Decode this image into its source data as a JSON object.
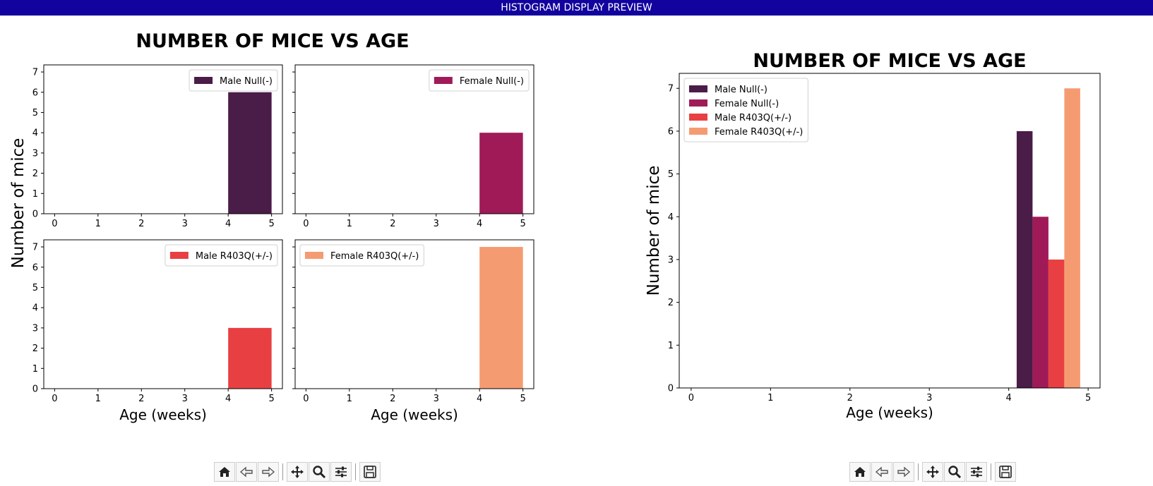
{
  "window": {
    "title": "HISTOGRAM DISPLAY PREVIEW"
  },
  "colors": {
    "male_null": "#4a1c48",
    "female_null": "#a01a58",
    "male_r403q": "#e84042",
    "female_r403q": "#f59b72"
  },
  "toolbar": {
    "buttons": [
      {
        "name": "home-icon"
      },
      {
        "name": "back-icon"
      },
      {
        "name": "forward-icon"
      },
      {
        "name": "pan-icon"
      },
      {
        "name": "zoom-icon"
      },
      {
        "name": "configure-icon"
      },
      {
        "name": "save-icon"
      }
    ]
  },
  "chart_data": [
    {
      "type": "bar",
      "title": "NUMBER OF MICE VS AGE",
      "ylabel": "Number of mice",
      "xlabel": "Age (weeks)",
      "subplots": [
        {
          "legend": "Male Null(-)",
          "color": "#4a1c48",
          "bins": [
            {
              "x0": 4,
              "x1": 5,
              "value": 6
            }
          ],
          "xlim": [
            -0.25,
            5.25
          ],
          "ylim": [
            0,
            7.35
          ],
          "xticks": [
            "0",
            "1",
            "2",
            "3",
            "4",
            "5"
          ],
          "yticks": [
            "0",
            "1",
            "2",
            "3",
            "4",
            "5",
            "6",
            "7"
          ],
          "legend_loc": "upper right",
          "show_yticklabels": true,
          "show_xlabel": false
        },
        {
          "legend": "Female Null(-)",
          "color": "#a01a58",
          "bins": [
            {
              "x0": 4,
              "x1": 5,
              "value": 4
            }
          ],
          "xlim": [
            -0.25,
            5.25
          ],
          "ylim": [
            0,
            7.35
          ],
          "xticks": [
            "0",
            "1",
            "2",
            "3",
            "4",
            "5"
          ],
          "yticks": [
            "0",
            "1",
            "2",
            "3",
            "4",
            "5",
            "6",
            "7"
          ],
          "legend_loc": "upper right",
          "show_yticklabels": false,
          "show_xlabel": false
        },
        {
          "legend": "Male R403Q(+/-)",
          "color": "#e84042",
          "bins": [
            {
              "x0": 4,
              "x1": 5,
              "value": 3
            }
          ],
          "xlim": [
            -0.25,
            5.25
          ],
          "ylim": [
            0,
            7.35
          ],
          "xticks": [
            "0",
            "1",
            "2",
            "3",
            "4",
            "5"
          ],
          "yticks": [
            "0",
            "1",
            "2",
            "3",
            "4",
            "5",
            "6",
            "7"
          ],
          "legend_loc": "upper right",
          "show_yticklabels": true,
          "show_xlabel": true
        },
        {
          "legend": "Female R403Q(+/-)",
          "color": "#f59b72",
          "bins": [
            {
              "x0": 4,
              "x1": 5,
              "value": 7
            }
          ],
          "xlim": [
            -0.25,
            5.25
          ],
          "ylim": [
            0,
            7.35
          ],
          "xticks": [
            "0",
            "1",
            "2",
            "3",
            "4",
            "5"
          ],
          "yticks": [
            "0",
            "1",
            "2",
            "3",
            "4",
            "5",
            "6",
            "7"
          ],
          "legend_loc": "upper left",
          "show_yticklabels": false,
          "show_xlabel": true
        }
      ]
    },
    {
      "type": "bar",
      "title": "NUMBER OF MICE VS AGE",
      "ylabel": "Number of mice",
      "xlabel": "Age (weeks)",
      "xlim": [
        -0.15,
        5.15
      ],
      "ylim": [
        0,
        7.35
      ],
      "xticks": [
        "0",
        "1",
        "2",
        "3",
        "4",
        "5"
      ],
      "yticks": [
        "0",
        "1",
        "2",
        "3",
        "4",
        "5",
        "6",
        "7"
      ],
      "legend_loc": "upper left",
      "series": [
        {
          "name": "Male Null(-)",
          "color": "#4a1c48",
          "bins": [
            {
              "x0": 4.1,
              "x1": 4.3,
              "value": 6
            }
          ]
        },
        {
          "name": "Female Null(-)",
          "color": "#a01a58",
          "bins": [
            {
              "x0": 4.3,
              "x1": 4.5,
              "value": 4
            }
          ]
        },
        {
          "name": "Male R403Q(+/-)",
          "color": "#e84042",
          "bins": [
            {
              "x0": 4.5,
              "x1": 4.7,
              "value": 3
            }
          ]
        },
        {
          "name": "Female R403Q(+/-)",
          "color": "#f59b72",
          "bins": [
            {
              "x0": 4.7,
              "x1": 4.9,
              "value": 7
            }
          ]
        }
      ]
    }
  ]
}
